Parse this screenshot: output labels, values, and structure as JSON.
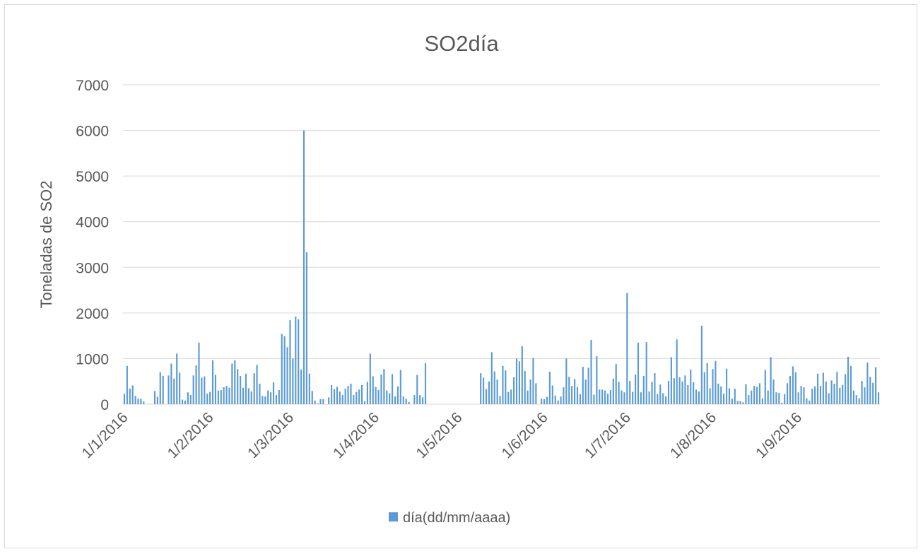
{
  "chart_data": {
    "type": "bar",
    "title": "SO2día",
    "xlabel": "",
    "ylabel": "Toneladas de SO2",
    "ylim": [
      0,
      7000
    ],
    "yticks": [
      "0",
      "1000",
      "2000",
      "3000",
      "4000",
      "5000",
      "6000",
      "7000"
    ],
    "xlim": [
      "2016-01-01",
      "2016-09-30"
    ],
    "xticks": [
      {
        "date": "2016-01-01",
        "label": "1/1/2016"
      },
      {
        "date": "2016-02-01",
        "label": "1/2/2016"
      },
      {
        "date": "2016-03-01",
        "label": "1/3/2016"
      },
      {
        "date": "2016-04-01",
        "label": "1/4/2016"
      },
      {
        "date": "2016-05-01",
        "label": "1/5/2016"
      },
      {
        "date": "2016-06-01",
        "label": "1/6/2016"
      },
      {
        "date": "2016-07-01",
        "label": "1/7/2016"
      },
      {
        "date": "2016-08-01",
        "label": "1/8/2016"
      },
      {
        "date": "2016-09-01",
        "label": "1/9/2016"
      }
    ],
    "grid": true,
    "legend_position": "bottom",
    "color": "#5b9bd5",
    "series": [
      {
        "name": "día(dd/mm/aaaa)",
        "start_date": "2016-01-01",
        "values": [
          230,
          840,
          340,
          410,
          180,
          120,
          120,
          60,
          null,
          null,
          null,
          290,
          160,
          700,
          620,
          null,
          630,
          890,
          560,
          1110,
          690,
          100,
          80,
          260,
          200,
          630,
          850,
          1350,
          580,
          610,
          230,
          270,
          960,
          640,
          300,
          310,
          370,
          400,
          360,
          890,
          960,
          770,
          620,
          360,
          670,
          350,
          280,
          680,
          860,
          450,
          180,
          170,
          300,
          260,
          480,
          200,
          310,
          1540,
          1490,
          1250,
          1840,
          1000,
          1920,
          1860,
          760,
          6000,
          3330,
          670,
          290,
          80,
          20,
          110,
          110,
          null,
          150,
          420,
          330,
          380,
          280,
          200,
          340,
          400,
          450,
          200,
          270,
          320,
          420,
          60,
          490,
          1110,
          610,
          380,
          310,
          650,
          770,
          300,
          240,
          660,
          170,
          390,
          750,
          170,
          120,
          50,
          null,
          200,
          640,
          200,
          150,
          900,
          null,
          null,
          null,
          null,
          null,
          null,
          null,
          null,
          null,
          null,
          null,
          null,
          null,
          null,
          null,
          null,
          null,
          null,
          null,
          680,
          580,
          330,
          500,
          1140,
          720,
          540,
          180,
          840,
          740,
          270,
          320,
          590,
          1000,
          940,
          1270,
          730,
          300,
          540,
          1010,
          460,
          null,
          120,
          110,
          160,
          710,
          410,
          190,
          80,
          170,
          370,
          1000,
          600,
          400,
          550,
          380,
          220,
          820,
          540,
          800,
          1410,
          210,
          1050,
          320,
          320,
          300,
          230,
          310,
          560,
          880,
          490,
          300,
          260,
          2440,
          510,
          270,
          650,
          1350,
          260,
          620,
          1360,
          280,
          490,
          680,
          220,
          430,
          240,
          170,
          510,
          1030,
          570,
          1420,
          590,
          500,
          630,
          420,
          760,
          480,
          320,
          280,
          1720,
          700,
          900,
          350,
          770,
          950,
          450,
          390,
          230,
          780,
          350,
          120,
          340,
          70,
          70,
          40,
          440,
          200,
          300,
          400,
          380,
          460,
          130,
          750,
          300,
          1030,
          540,
          260,
          250,
          30,
          220,
          460,
          620,
          830,
          700,
          260,
          400,
          370,
          130,
          80,
          340,
          390,
          670,
          400,
          690,
          500,
          240,
          520,
          450,
          710,
          360,
          420,
          660,
          1040,
          840,
          300,
          200,
          130,
          510,
          370,
          910,
          600,
          470,
          810,
          260
        ]
      }
    ]
  }
}
